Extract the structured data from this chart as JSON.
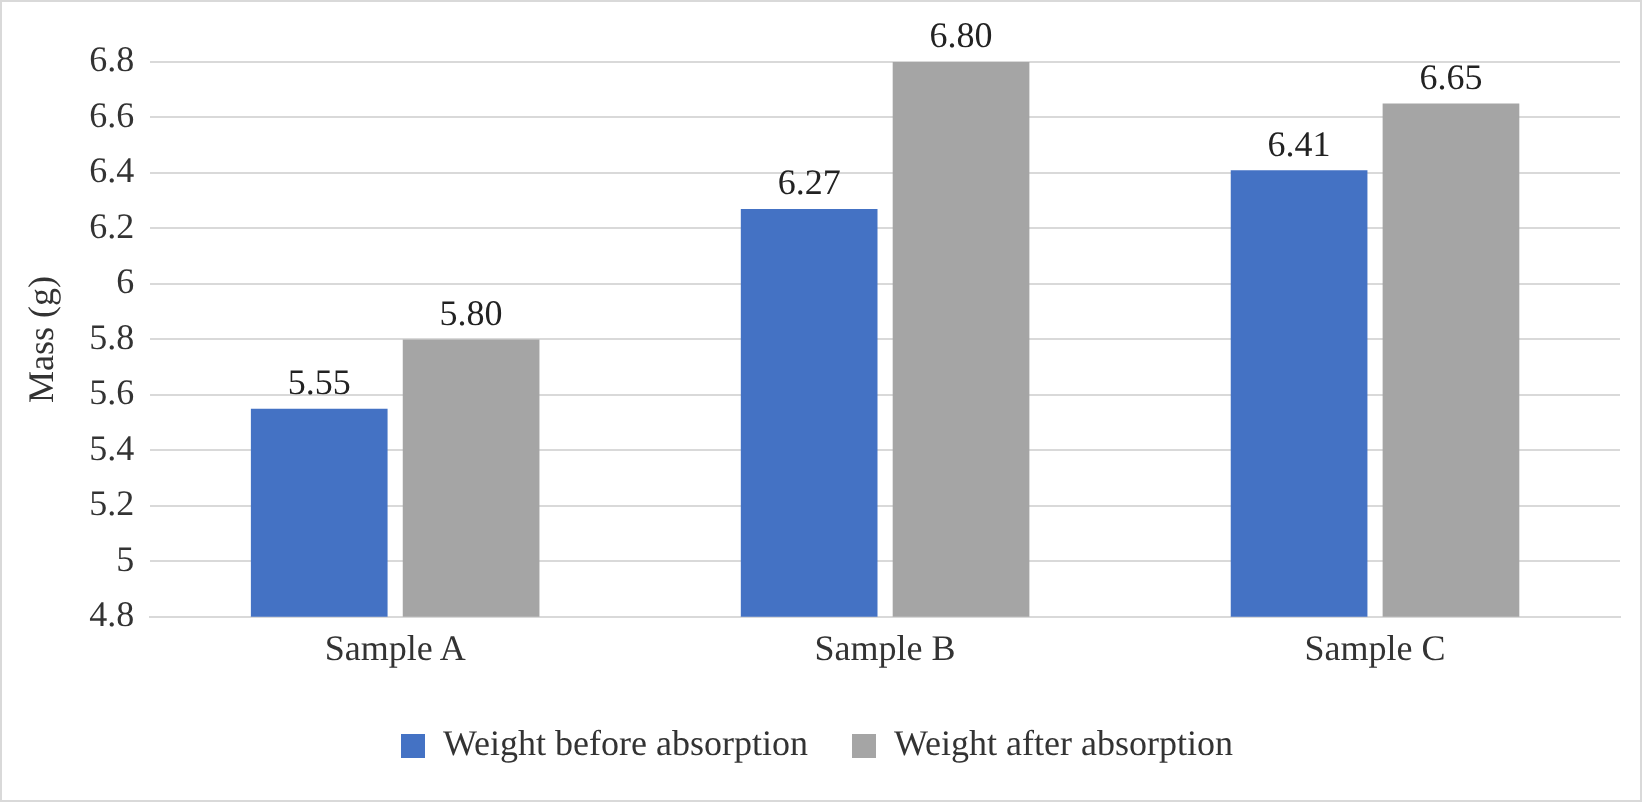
{
  "chart_data": {
    "type": "bar",
    "ylabel": "Mass (g)",
    "categories": [
      "Sample A",
      "Sample B",
      "Sample C"
    ],
    "series": [
      {
        "name": "Weight before absorption",
        "color": "#4472c4",
        "values": [
          5.55,
          6.27,
          6.41
        ],
        "value_labels": [
          "5.55",
          "6.27",
          "6.41"
        ]
      },
      {
        "name": "Weight after absorption",
        "color": "#a5a5a5",
        "values": [
          5.8,
          6.8,
          6.65
        ],
        "value_labels": [
          "5.80",
          "6.80",
          "6.65"
        ]
      }
    ],
    "ylim": [
      4.8,
      6.8
    ],
    "yticks": [
      4.8,
      5,
      5.2,
      5.4,
      5.6,
      5.8,
      6,
      6.2,
      6.4,
      6.6,
      6.8
    ],
    "grid": "y",
    "legend": "bottom"
  }
}
